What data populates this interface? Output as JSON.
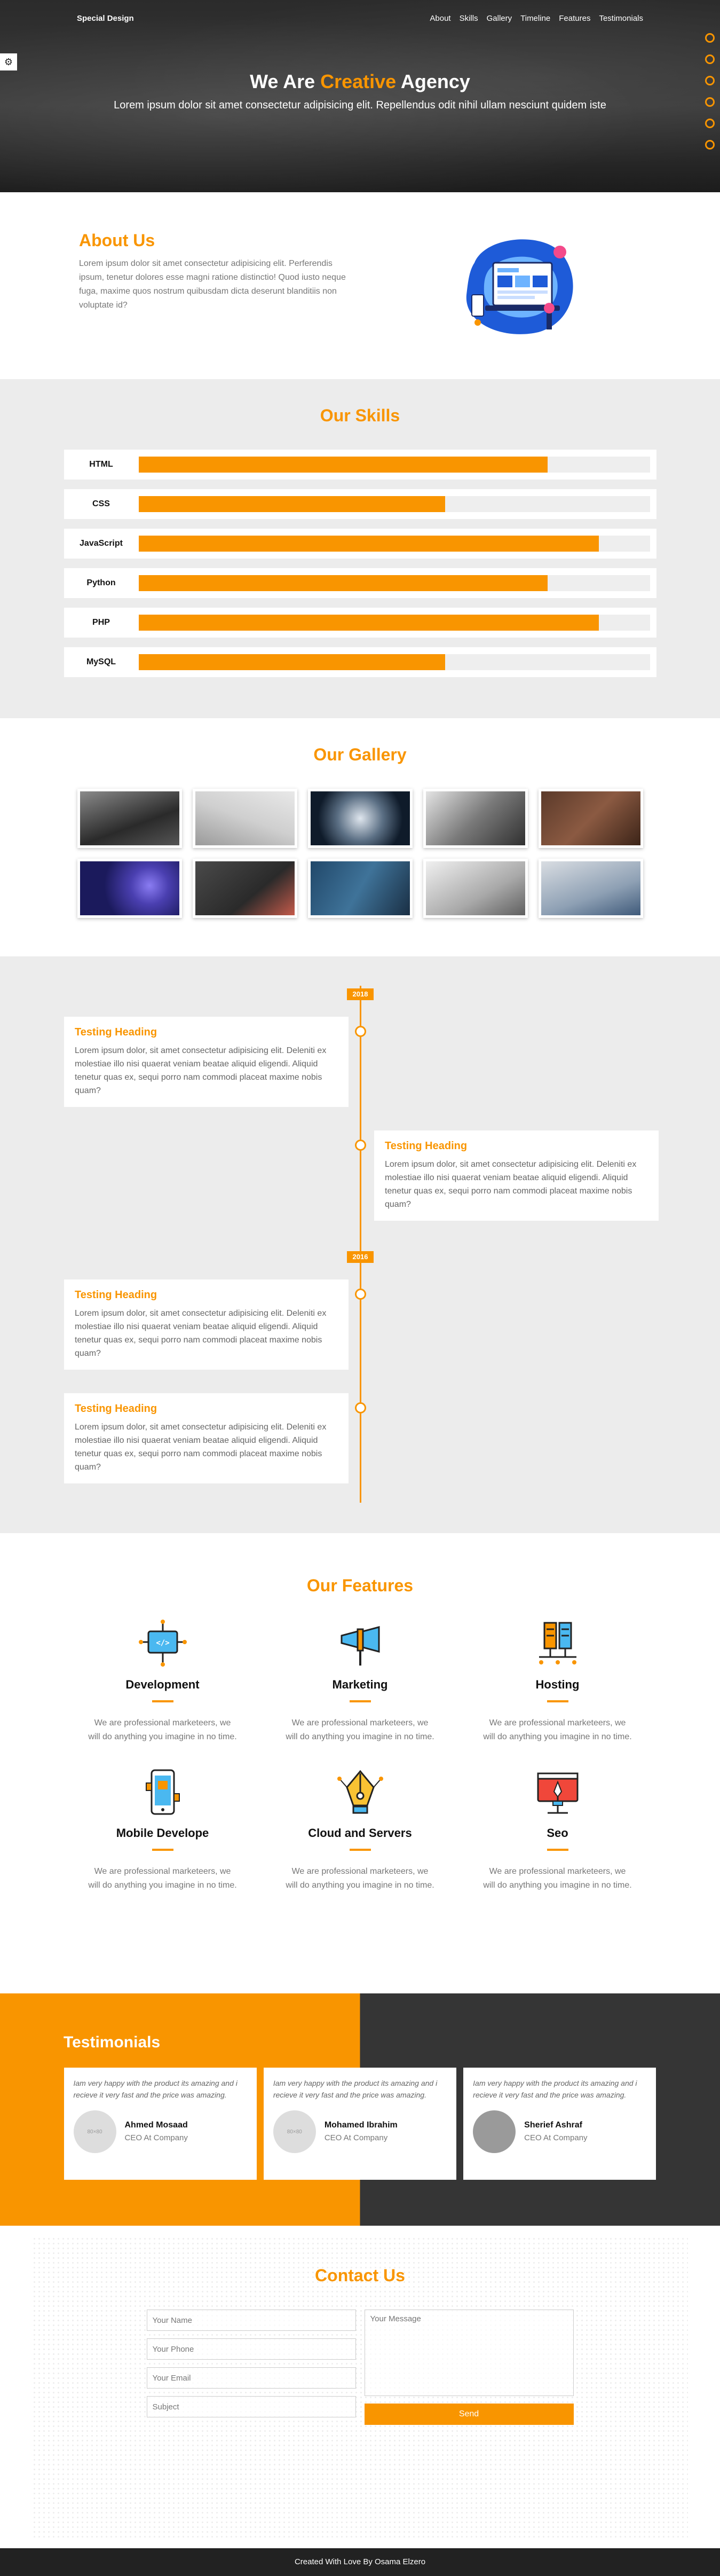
{
  "header": {
    "logo": "Special Design",
    "nav": [
      "About",
      "Skills",
      "Gallery",
      "Timeline",
      "Features",
      "Testimonials"
    ],
    "hero_title_before": "We Are ",
    "hero_title_accent": "Creative",
    "hero_title_after": " Agency",
    "hero_subtitle": "Lorem ipsum dolor sit amet consectetur adipisicing elit. Repellendus odit nihil ullam nesciunt quidem iste"
  },
  "about": {
    "title": "About Us",
    "text": "Lorem ipsum dolor sit amet consectetur adipisicing elit. Perferendis ipsum, tenetur dolores esse magni ratione distinctio! Quod iusto neque fuga, maxime quos nostrum quibusdam dicta deserunt blanditiis non voluptate id?"
  },
  "skills": {
    "title": "Our Skills",
    "items": [
      {
        "name": "HTML",
        "percent": 80
      },
      {
        "name": "CSS",
        "percent": 60
      },
      {
        "name": "JavaScript",
        "percent": 90
      },
      {
        "name": "Python",
        "percent": 80
      },
      {
        "name": "PHP",
        "percent": 90
      },
      {
        "name": "MySQL",
        "percent": 60
      }
    ]
  },
  "gallery": {
    "title": "Our Gallery"
  },
  "timeline": {
    "years": [
      "2018",
      "2016"
    ],
    "items": [
      {
        "heading": "Testing Heading",
        "text": "Lorem ipsum dolor, sit amet consectetur adipisicing elit. Deleniti ex molestiae illo nisi quaerat veniam beatae aliquid eligendi. Aliquid tenetur quas ex, sequi porro nam commodi placeat maxime nobis quam?"
      },
      {
        "heading": "Testing Heading",
        "text": "Lorem ipsum dolor, sit amet consectetur adipisicing elit. Deleniti ex molestiae illo nisi quaerat veniam beatae aliquid eligendi. Aliquid tenetur quas ex, sequi porro nam commodi placeat maxime nobis quam?"
      },
      {
        "heading": "Testing Heading",
        "text": "Lorem ipsum dolor, sit amet consectetur adipisicing elit. Deleniti ex molestiae illo nisi quaerat veniam beatae aliquid eligendi. Aliquid tenetur quas ex, sequi porro nam commodi placeat maxime nobis quam?"
      },
      {
        "heading": "Testing Heading",
        "text": "Lorem ipsum dolor, sit amet consectetur adipisicing elit. Deleniti ex molestiae illo nisi quaerat veniam beatae aliquid eligendi. Aliquid tenetur quas ex, sequi porro nam commodi placeat maxime nobis quam?"
      }
    ]
  },
  "features": {
    "title": "Our Features",
    "items": [
      {
        "name": "Development",
        "icon": "development-icon",
        "text": "We are professional marketeers, we will do anything you imagine in no time."
      },
      {
        "name": "Marketing",
        "icon": "marketing-icon",
        "text": "We are professional marketeers, we will do anything you imagine in no time."
      },
      {
        "name": "Hosting",
        "icon": "hosting-icon",
        "text": "We are professional marketeers, we will do anything you imagine in no time."
      },
      {
        "name": "Mobile Develope",
        "icon": "mobile-icon",
        "text": "We are professional marketeers, we will do anything you imagine in no time."
      },
      {
        "name": "Cloud and Servers",
        "icon": "cloud-servers-icon",
        "text": "We are professional marketeers, we will do anything you imagine in no time."
      },
      {
        "name": "Seo",
        "icon": "seo-icon",
        "text": "We are professional marketeers, we will do anything you imagine in no time."
      }
    ]
  },
  "testimonials": {
    "title": "Testimonials",
    "items": [
      {
        "quote": "Iam very happy with the product its amazing and i recieve it very fast and the price was amazing.",
        "name": "Ahmed Mosaad",
        "role": "CEO At Company",
        "avatar_text": "80×80"
      },
      {
        "quote": "Iam very happy with the product its amazing and i recieve it very fast and the price was amazing.",
        "name": "Mohamed Ibrahim",
        "role": "CEO At Company",
        "avatar_text": "80×80"
      },
      {
        "quote": "Iam very happy with the product its amazing and i recieve it very fast and the price was amazing.",
        "name": "Sherief Ashraf",
        "role": "CEO At Company",
        "avatar_text": ""
      }
    ]
  },
  "contact": {
    "title": "Contact Us",
    "name_placeholder": "Your Name",
    "phone_placeholder": "Your Phone",
    "email_placeholder": "Your Email",
    "subject_placeholder": "Subject",
    "message_placeholder": "Your Message",
    "send_label": "Send"
  },
  "footer": {
    "text": "Created With Love By Osama Elzero"
  },
  "colors": {
    "accent": "#f99500",
    "dark": "#353535",
    "light_bg": "#ececec"
  }
}
